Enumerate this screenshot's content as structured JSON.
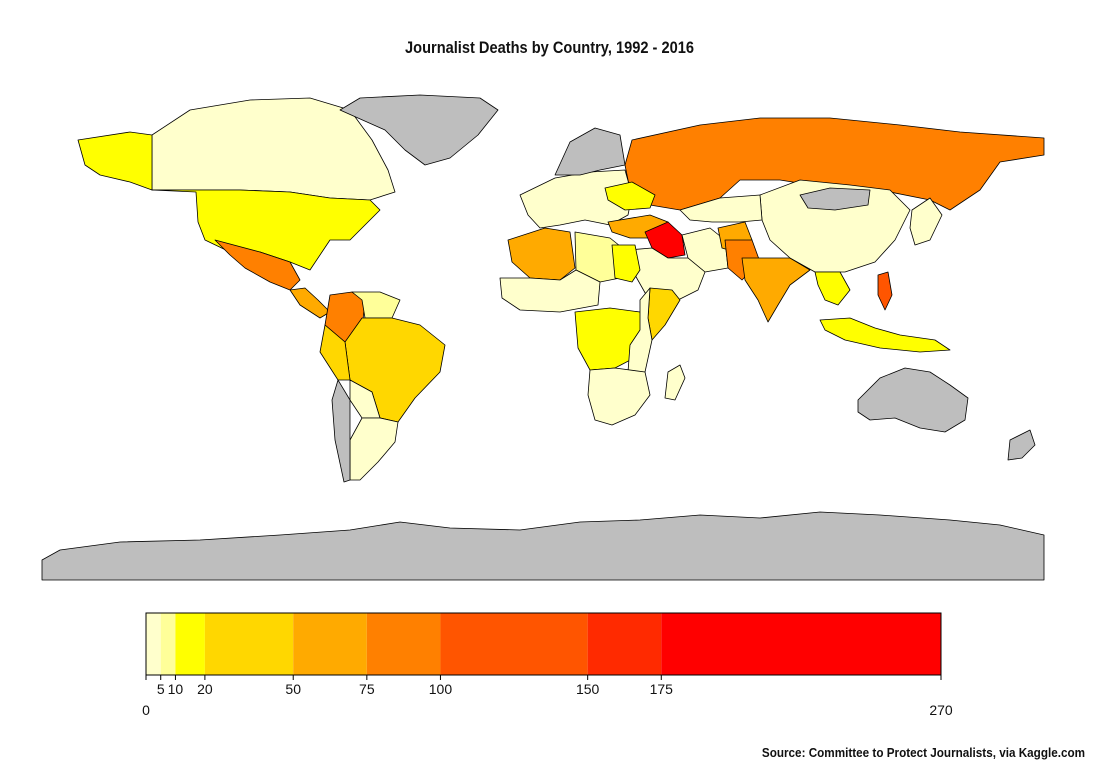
{
  "title": "Journalist Deaths by Country, 1992 - 2016",
  "source": "Source: Committee to Protect Journalists, via Kaggle.com",
  "colors": {
    "no_data": "#bebebe",
    "ocean": "#ffffff",
    "bins": [
      "#ffffcc",
      "#ffff99",
      "#ffff00",
      "#ffd700",
      "#ffaa00",
      "#ff8000",
      "#ff5500",
      "#ff2a00",
      "#ff0000"
    ]
  },
  "legend": {
    "breaks": [
      0,
      5,
      10,
      20,
      50,
      75,
      100,
      150,
      175,
      270
    ],
    "upper_labels": [
      "5",
      "10",
      "20",
      "50",
      "75",
      "100",
      "150",
      "175"
    ],
    "lower_labels": [
      "0",
      "270"
    ]
  },
  "regions": [
    {
      "name": "canada",
      "bin": 0
    },
    {
      "name": "usa",
      "bin": 2
    },
    {
      "name": "alaska",
      "bin": 2
    },
    {
      "name": "greenland",
      "bin": null
    },
    {
      "name": "mexico",
      "bin": 5
    },
    {
      "name": "central-america",
      "bin": 4
    },
    {
      "name": "colombia",
      "bin": 5
    },
    {
      "name": "venezuela",
      "bin": 1
    },
    {
      "name": "brazil",
      "bin": 3
    },
    {
      "name": "peru",
      "bin": 3
    },
    {
      "name": "bolivia",
      "bin": 0
    },
    {
      "name": "argentina",
      "bin": 0
    },
    {
      "name": "chile",
      "bin": null
    },
    {
      "name": "russia",
      "bin": 5
    },
    {
      "name": "europe",
      "bin": 0
    },
    {
      "name": "scandinavia",
      "bin": null
    },
    {
      "name": "ukraine",
      "bin": 2
    },
    {
      "name": "turkey",
      "bin": 4
    },
    {
      "name": "syria-iraq",
      "bin": 8
    },
    {
      "name": "iran",
      "bin": 0
    },
    {
      "name": "arabia",
      "bin": 0
    },
    {
      "name": "afghanistan",
      "bin": 4
    },
    {
      "name": "pakistan",
      "bin": 5
    },
    {
      "name": "india",
      "bin": 4
    },
    {
      "name": "china",
      "bin": 0
    },
    {
      "name": "kazakhstan",
      "bin": 0
    },
    {
      "name": "mongolia",
      "bin": null
    },
    {
      "name": "southeast-asia",
      "bin": 2
    },
    {
      "name": "philippines",
      "bin": 6
    },
    {
      "name": "indonesia",
      "bin": 2
    },
    {
      "name": "japan",
      "bin": 0
    },
    {
      "name": "algeria",
      "bin": 4
    },
    {
      "name": "north-africa",
      "bin": 1
    },
    {
      "name": "egypt",
      "bin": 2
    },
    {
      "name": "west-africa",
      "bin": 0
    },
    {
      "name": "somalia",
      "bin": 3
    },
    {
      "name": "central-africa",
      "bin": 2
    },
    {
      "name": "east-africa",
      "bin": 0
    },
    {
      "name": "southern-africa",
      "bin": 0
    },
    {
      "name": "madagascar",
      "bin": 0
    },
    {
      "name": "australia",
      "bin": null
    },
    {
      "name": "new-zealand",
      "bin": null
    },
    {
      "name": "antarctica",
      "bin": null
    }
  ]
}
